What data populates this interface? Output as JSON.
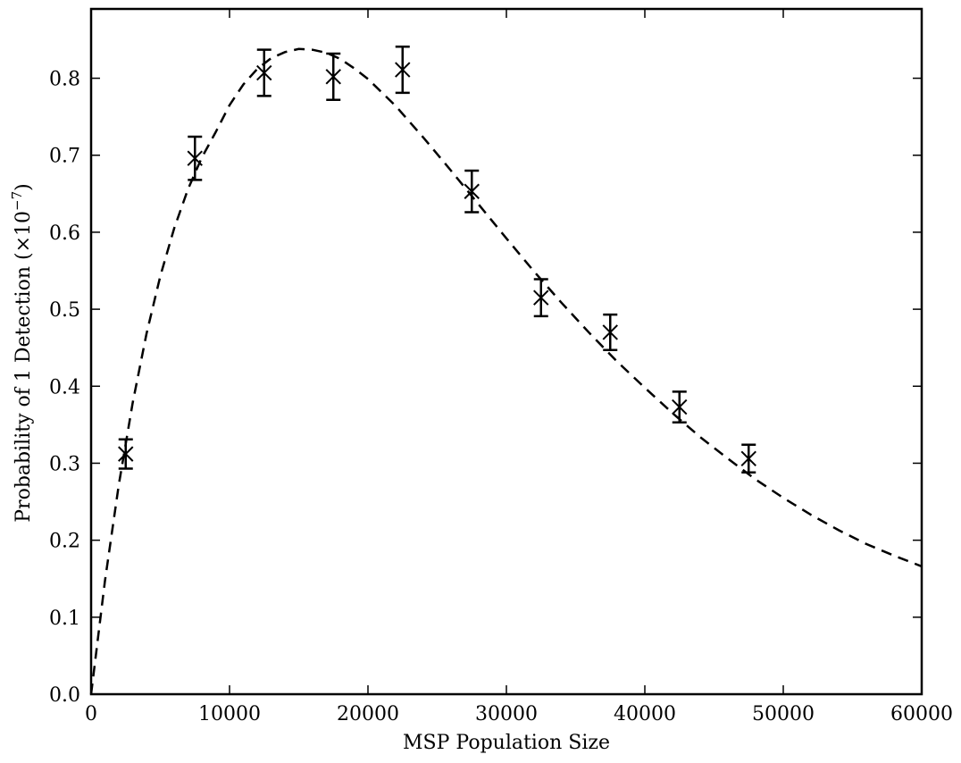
{
  "chart_data": {
    "type": "scatter",
    "title": "",
    "xlabel": "MSP Population Size",
    "ylabel": "Probability of 1 Detection (×10",
    "ylabel_exponent": "−7",
    "ylabel_close": ")",
    "xlim": [
      0,
      60000
    ],
    "ylim": [
      0,
      0.89
    ],
    "xticks": [
      0,
      10000,
      20000,
      30000,
      40000,
      50000,
      60000
    ],
    "xtick_labels": [
      "0",
      "10000",
      "20000",
      "30000",
      "40000",
      "50000",
      "60000"
    ],
    "yticks": [
      0.0,
      0.1,
      0.2,
      0.3,
      0.4,
      0.5,
      0.6,
      0.7,
      0.8
    ],
    "ytick_labels": [
      "0.0",
      "0.1",
      "0.2",
      "0.3",
      "0.4",
      "0.5",
      "0.6",
      "0.7",
      "0.8"
    ],
    "grid": false,
    "legend": "none",
    "series": [
      {
        "kind": "points_with_error_bars",
        "marker": "x",
        "color": "#000000",
        "x": [
          2500,
          7500,
          12500,
          17500,
          22500,
          27500,
          32500,
          37500,
          42500,
          47500
        ],
        "y": [
          0.312,
          0.696,
          0.807,
          0.802,
          0.811,
          0.653,
          0.515,
          0.47,
          0.373,
          0.306
        ],
        "yerr": [
          0.019,
          0.028,
          0.03,
          0.03,
          0.03,
          0.027,
          0.024,
          0.023,
          0.02,
          0.018
        ]
      },
      {
        "kind": "curve",
        "style": "dashed",
        "color": "#000000",
        "x": [
          0,
          1000,
          2000,
          3000,
          4000,
          5000,
          6000,
          7000,
          8000,
          9000,
          10000,
          11000,
          12000,
          13000,
          14000,
          15000,
          16000,
          17000,
          18000,
          19000,
          20000,
          22000,
          24000,
          26000,
          28000,
          30000,
          32000,
          34000,
          36000,
          38000,
          40000,
          42000,
          44000,
          46000,
          48000,
          50000,
          52000,
          54000,
          56000,
          58000,
          60000
        ],
        "y": [
          0.0,
          0.147,
          0.272,
          0.378,
          0.468,
          0.543,
          0.605,
          0.656,
          0.697,
          0.73,
          0.765,
          0.792,
          0.812,
          0.826,
          0.834,
          0.838,
          0.837,
          0.833,
          0.825,
          0.813,
          0.799,
          0.764,
          0.723,
          0.68,
          0.636,
          0.592,
          0.549,
          0.508,
          0.469,
          0.432,
          0.398,
          0.365,
          0.334,
          0.306,
          0.279,
          0.255,
          0.233,
          0.213,
          0.195,
          0.18,
          0.166
        ]
      }
    ]
  }
}
